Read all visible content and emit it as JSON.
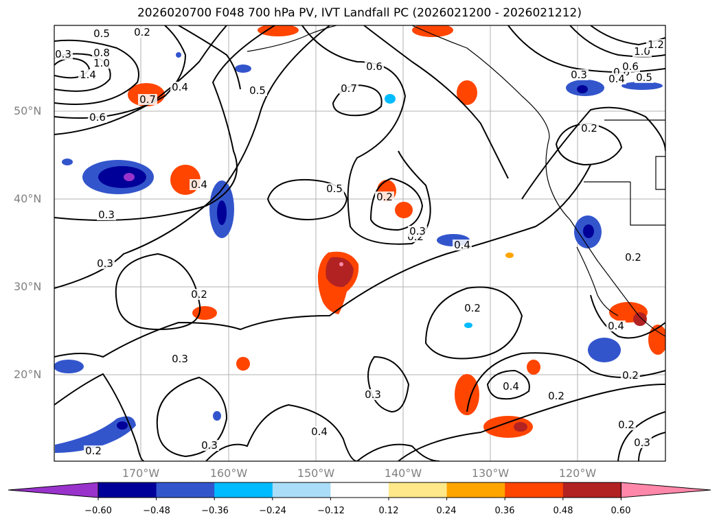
{
  "title": "2026020700 F048 700 hPa PV, IVT Landfall PC (2026021200 - 2026021212)",
  "colors": {
    "contour": "#000000",
    "grid": "#b0b0b0",
    "coast": "#000000",
    "axis_label": "#808080"
  },
  "axes": {
    "lat_labels": [
      "50°N",
      "40°N",
      "30°N",
      "20°N"
    ],
    "lon_labels": [
      "170°W",
      "160°W",
      "150°W",
      "140°W",
      "130°W",
      "120°W"
    ]
  },
  "contour_labels": [
    "0.5",
    "0.2",
    "0.3",
    "0.8",
    "1.0",
    "1.4",
    "0.7",
    "0.4",
    "0.6",
    "0.5",
    "0.7",
    "0.6",
    "0.3",
    "0.2",
    "0.6",
    "1.0",
    "1.2",
    "0.4",
    "0.5",
    "0.6",
    "0.3",
    "0.4",
    "0.5",
    "0.2",
    "0.3",
    "0.3",
    "0.2",
    "0.3",
    "0.4",
    "0.4",
    "0.2",
    "0.4",
    "0.2",
    "0.2",
    "0.3",
    "0.4",
    "0.3",
    "0.2",
    "0.2",
    "0.3",
    "0.2",
    "0.2"
  ],
  "colorbar": {
    "ticks": [
      "−0.60",
      "−0.48",
      "−0.36",
      "−0.24",
      "−0.12",
      "0.12",
      "0.24",
      "0.36",
      "0.48",
      "0.60"
    ],
    "colors": [
      "#9933cc",
      "#000099",
      "#3355cc",
      "#00bbff",
      "#aaddf7",
      "#ffffff",
      "#ffe88a",
      "#ffa500",
      "#ff4500",
      "#b22222",
      "#ff88aa"
    ]
  }
}
